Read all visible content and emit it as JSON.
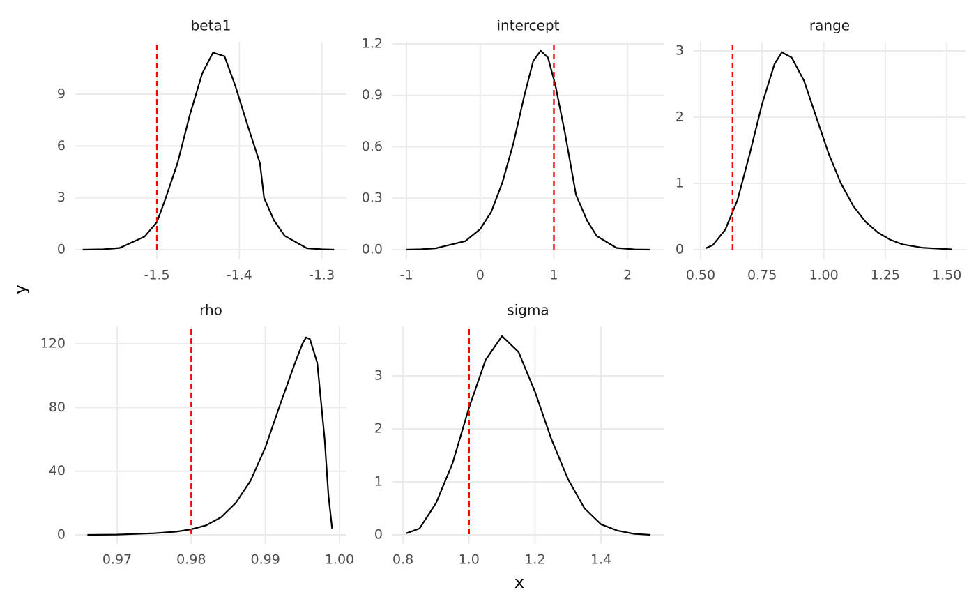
{
  "xlabel": "x",
  "ylabel": "y",
  "chart_data": [
    {
      "type": "line",
      "title": "beta1",
      "grid": true,
      "x": [
        -1.59,
        -1.565,
        -1.545,
        -1.515,
        -1.5,
        -1.49,
        -1.475,
        -1.46,
        -1.445,
        -1.432,
        -1.418,
        -1.405,
        -1.39,
        -1.375,
        -1.37,
        -1.358,
        -1.345,
        -1.318,
        -1.3,
        -1.285
      ],
      "values": [
        0,
        0.02,
        0.1,
        0.75,
        1.6,
        2.9,
        5.0,
        7.8,
        10.2,
        11.4,
        11.2,
        9.5,
        7.2,
        5.0,
        3.0,
        1.7,
        0.8,
        0.08,
        0.02,
        0
      ],
      "color": "#000000",
      "vline": {
        "value": -1.5,
        "color": "#ff0000"
      },
      "xlim": [
        -1.599,
        -1.27
      ],
      "ylim": [
        -0.565,
        12.03
      ],
      "xticks": [
        -1.5,
        -1.4,
        -1.3
      ],
      "yticks": [
        0,
        3,
        6,
        9
      ]
    },
    {
      "type": "line",
      "title": "intercept",
      "grid": true,
      "x": [
        -1,
        -0.8,
        -0.6,
        -0.2,
        0,
        0.15,
        0.3,
        0.45,
        0.6,
        0.72,
        0.82,
        0.92,
        1.02,
        1.15,
        1.3,
        1.45,
        1.58,
        1.85,
        2.1,
        2.3
      ],
      "values": [
        0,
        0.002,
        0.008,
        0.05,
        0.12,
        0.22,
        0.39,
        0.62,
        0.9,
        1.1,
        1.16,
        1.12,
        0.96,
        0.68,
        0.32,
        0.17,
        0.08,
        0.01,
        0.001,
        0
      ],
      "color": "#000000",
      "vline": {
        "value": 1.0,
        "color": "#ff0000"
      },
      "xlim": [
        -1.19,
        2.49
      ],
      "ylim": [
        -0.057,
        1.212
      ],
      "xticks": [
        -1,
        0,
        1,
        2
      ],
      "yticks": [
        {
          "value": 0,
          "label": "0.0"
        },
        0.3,
        0.6,
        0.9,
        1.2
      ]
    },
    {
      "type": "line",
      "title": "range",
      "grid": true,
      "x": [
        0.52,
        0.55,
        0.6,
        0.65,
        0.7,
        0.75,
        0.8,
        0.83,
        0.87,
        0.92,
        0.97,
        1.02,
        1.07,
        1.12,
        1.17,
        1.22,
        1.27,
        1.32,
        1.4,
        1.52
      ],
      "values": [
        0.02,
        0.07,
        0.3,
        0.75,
        1.45,
        2.2,
        2.8,
        2.98,
        2.9,
        2.55,
        2.0,
        1.45,
        1.0,
        0.66,
        0.42,
        0.26,
        0.15,
        0.08,
        0.03,
        0.005
      ],
      "color": "#000000",
      "vline": {
        "value": 0.63,
        "color": "#ff0000"
      },
      "xlim": [
        0.472,
        1.576
      ],
      "ylim": [
        -0.147,
        3.137
      ],
      "xticks": [
        {
          "value": 0.5,
          "label": "0.50"
        },
        0.75,
        {
          "value": 1,
          "label": "1.00"
        },
        1.25,
        {
          "value": 1.5,
          "label": "1.50"
        }
      ],
      "yticks": [
        0,
        1,
        2,
        3
      ]
    },
    {
      "type": "line",
      "title": "rho",
      "grid": true,
      "x": [
        0.966,
        0.97,
        0.975,
        0.978,
        0.98,
        0.982,
        0.984,
        0.986,
        0.988,
        0.99,
        0.992,
        0.994,
        0.995,
        0.9955,
        0.996,
        0.997,
        0.998,
        0.9985,
        0.999
      ],
      "values": [
        0,
        0.2,
        1,
        2,
        3.5,
        6,
        11,
        20,
        34,
        55,
        82,
        108,
        120,
        124,
        123,
        108,
        60,
        25,
        4
      ],
      "color": "#000000",
      "vline": {
        "value": 0.98,
        "color": "#ff0000"
      },
      "xlim": [
        0.96436,
        1.00094
      ],
      "ylim": [
        -5.69,
        130.97
      ],
      "xticks": [
        0.97,
        0.98,
        0.99,
        {
          "value": 1,
          "label": "1.00"
        }
      ],
      "yticks": [
        0,
        40,
        80,
        120
      ]
    },
    {
      "type": "line",
      "title": "sigma",
      "grid": true,
      "x": [
        0.81,
        0.85,
        0.9,
        0.95,
        1.0,
        1.05,
        1.1,
        1.15,
        1.2,
        1.25,
        1.3,
        1.35,
        1.4,
        1.45,
        1.5,
        1.55
      ],
      "values": [
        0.03,
        0.12,
        0.6,
        1.35,
        2.4,
        3.3,
        3.75,
        3.45,
        2.7,
        1.8,
        1.05,
        0.5,
        0.2,
        0.08,
        0.02,
        0
      ],
      "color": "#000000",
      "vline": {
        "value": 1.0,
        "color": "#ff0000"
      },
      "xlim": [
        0.768,
        1.59
      ],
      "ylim": [
        -0.171,
        3.934
      ],
      "xticks": [
        0.8,
        {
          "value": 1,
          "label": "1.0"
        },
        1.2,
        1.4
      ],
      "yticks": [
        0,
        1,
        2,
        3
      ]
    }
  ]
}
